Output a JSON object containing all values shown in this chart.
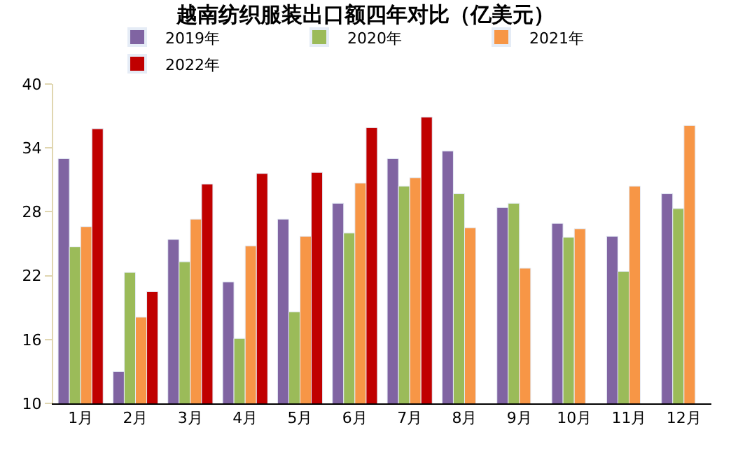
{
  "chart_data": {
    "type": "bar",
    "title": "越南纺织服装出口额四年对比（亿美元）",
    "categories": [
      "1月",
      "2月",
      "3月",
      "4月",
      "5月",
      "6月",
      "7月",
      "8月",
      "9月",
      "10月",
      "11月",
      "12月"
    ],
    "series": [
      {
        "name": "2019年",
        "color": "#8064a2",
        "values": [
          33.0,
          13.0,
          25.4,
          21.4,
          27.3,
          28.8,
          33.0,
          33.7,
          28.4,
          26.9,
          25.7,
          29.7
        ]
      },
      {
        "name": "2020年",
        "color": "#9bbb59",
        "values": [
          24.7,
          22.3,
          23.3,
          16.1,
          18.6,
          26.0,
          30.4,
          29.7,
          28.8,
          25.6,
          22.4,
          28.3
        ]
      },
      {
        "name": "2021年",
        "color": "#f79646",
        "values": [
          26.6,
          18.1,
          27.3,
          24.8,
          25.7,
          30.7,
          31.2,
          26.5,
          22.7,
          26.4,
          30.4,
          36.1
        ]
      },
      {
        "name": "2022年",
        "color": "#c00000",
        "values": [
          35.8,
          20.5,
          30.6,
          31.6,
          31.7,
          35.9,
          36.9,
          null,
          null,
          null,
          null,
          null
        ]
      }
    ],
    "ylim": [
      10,
      40
    ],
    "yticks": [
      10,
      16,
      22,
      28,
      34,
      40
    ],
    "legend": "top"
  }
}
